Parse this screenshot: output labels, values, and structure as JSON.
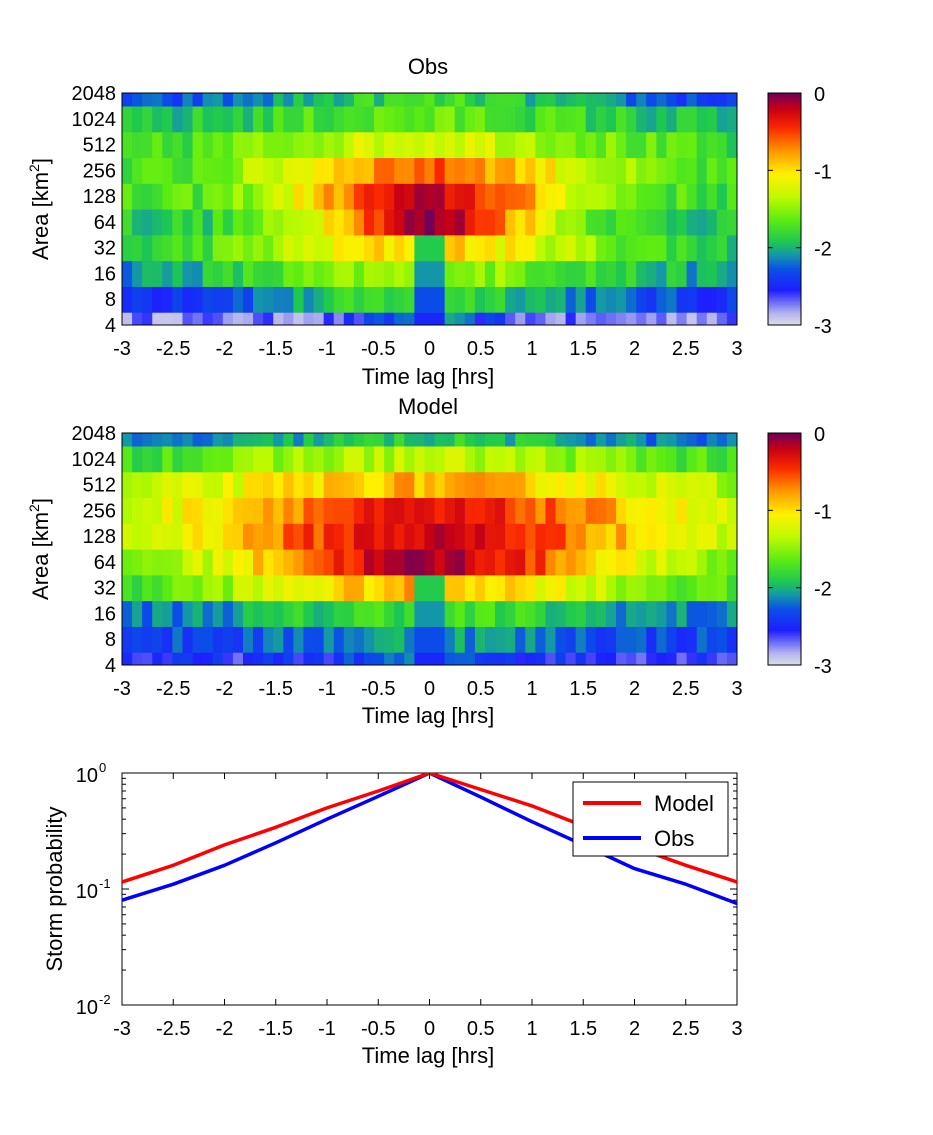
{
  "chart_data": [
    {
      "type": "heatmap",
      "title": "Obs",
      "xlabel": "Time lag [hrs]",
      "ylabel": "Area [km2]",
      "ylabel_main": "Area [km",
      "ylabel_sup": "2",
      "ylabel_end": "]",
      "x_ticks": [
        "-3",
        "-2.5",
        "-2",
        "-1.5",
        "-1",
        "-0.5",
        "0",
        "0.5",
        "1",
        "1.5",
        "2",
        "2.5",
        "3"
      ],
      "y_ticks": [
        "4",
        "8",
        "16",
        "32",
        "64",
        "128",
        "256",
        "512",
        "1024",
        "2048"
      ],
      "xlim": [
        -3,
        3
      ],
      "colorbar": {
        "ticks": [
          "0",
          "-1",
          "-2",
          "-3"
        ],
        "range": [
          -3,
          0
        ]
      },
      "model": {
        "rows": [
          {
            "area": 4,
            "peak": -2.15,
            "width": 0.45,
            "floor": -2.75
          },
          {
            "area": 8,
            "peak": -1.75,
            "width": 1.2,
            "floor": -2.45
          },
          {
            "area": 16,
            "peak": -1.45,
            "width": 1.5,
            "floor": -2.2
          },
          {
            "area": 32,
            "peak": -0.95,
            "width": 1.3,
            "floor": -1.95
          },
          {
            "area": 64,
            "peak": -0.12,
            "width": 0.85,
            "floor": -1.9
          },
          {
            "area": 128,
            "peak": -0.25,
            "width": 1.0,
            "floor": -1.8
          },
          {
            "area": 256,
            "peak": -0.6,
            "width": 1.2,
            "floor": -1.85
          },
          {
            "area": 512,
            "peak": -1.2,
            "width": 1.4,
            "floor": -1.9
          },
          {
            "area": 1024,
            "peak": -1.65,
            "width": 1.5,
            "floor": -2.05
          },
          {
            "area": 2048,
            "peak": -1.8,
            "width": 1.4,
            "floor": -2.45
          }
        ]
      }
    },
    {
      "type": "heatmap",
      "title": "Model",
      "xlabel": "Time lag [hrs]",
      "ylabel": "Area [km2]",
      "ylabel_main": "Area [km",
      "ylabel_sup": "2",
      "ylabel_end": "]",
      "x_ticks": [
        "-3",
        "-2.5",
        "-2",
        "-1.5",
        "-1",
        "-0.5",
        "0",
        "0.5",
        "1",
        "1.5",
        "2",
        "2.5",
        "3"
      ],
      "y_ticks": [
        "4",
        "8",
        "16",
        "32",
        "64",
        "128",
        "256",
        "512",
        "1024",
        "2048"
      ],
      "xlim": [
        -3,
        3
      ],
      "colorbar": {
        "ticks": [
          "0",
          "-1",
          "-2",
          "-3"
        ],
        "range": [
          -3,
          0
        ]
      },
      "model": {
        "rows": [
          {
            "area": 4,
            "peak": -2.2,
            "width": 0.6,
            "floor": -2.55
          },
          {
            "area": 8,
            "peak": -2.05,
            "width": 1.0,
            "floor": -2.35
          },
          {
            "area": 16,
            "peak": -1.75,
            "width": 1.4,
            "floor": -2.25
          },
          {
            "area": 32,
            "peak": -0.85,
            "width": 1.6,
            "floor": -1.95
          },
          {
            "area": 64,
            "peak": -0.15,
            "width": 1.4,
            "floor": -1.75
          },
          {
            "area": 128,
            "peak": -0.25,
            "width": 1.7,
            "floor": -1.65
          },
          {
            "area": 256,
            "peak": -0.4,
            "width": 1.9,
            "floor": -1.7
          },
          {
            "area": 512,
            "peak": -0.85,
            "width": 2.0,
            "floor": -1.75
          },
          {
            "area": 1024,
            "peak": -1.35,
            "width": 2.0,
            "floor": -1.95
          },
          {
            "area": 2048,
            "peak": -1.9,
            "width": 1.6,
            "floor": -2.35
          }
        ]
      }
    },
    {
      "type": "line",
      "xlabel": "Time lag [hrs]",
      "ylabel": "Storm probability",
      "x_ticks": [
        "-3",
        "-2.5",
        "-2",
        "-1.5",
        "-1",
        "-0.5",
        "0",
        "0.5",
        "1",
        "1.5",
        "2",
        "2.5",
        "3"
      ],
      "y_ticks": [
        {
          "base": "10",
          "exp": "0"
        },
        {
          "base": "10",
          "exp": "-1"
        },
        {
          "base": "10",
          "exp": "-2"
        }
      ],
      "xlim": [
        -3,
        3
      ],
      "ylim": [
        0.01,
        1
      ],
      "yscale": "log",
      "legend_position": "top-right",
      "series": [
        {
          "name": "Model",
          "color": "#ff0000",
          "x": [
            -3,
            -2.5,
            -2,
            -1.5,
            -1,
            -0.5,
            0,
            0.5,
            1,
            1.5,
            2,
            2.5,
            3
          ],
          "values": [
            0.115,
            0.16,
            0.24,
            0.34,
            0.5,
            0.7,
            1.0,
            0.72,
            0.52,
            0.35,
            0.23,
            0.16,
            0.115
          ]
        },
        {
          "name": "Obs",
          "color": "#0000ff",
          "x": [
            -3,
            -2.5,
            -2,
            -1.5,
            -1,
            -0.5,
            0,
            0.5,
            1,
            1.5,
            2,
            2.5,
            3
          ],
          "values": [
            0.08,
            0.11,
            0.16,
            0.25,
            0.4,
            0.63,
            1.0,
            0.62,
            0.38,
            0.24,
            0.15,
            0.11,
            0.075
          ]
        }
      ]
    }
  ]
}
